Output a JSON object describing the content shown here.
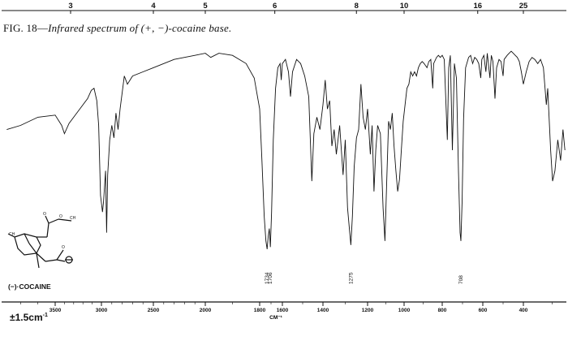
{
  "caption": {
    "prefix": "FIG. 18—",
    "title": "Infrared spectrum of (+, −)-cocaine base."
  },
  "compound_label": "(−)·COCAINE",
  "scale_label": "±1.5cm",
  "scale_label_sup": "-1",
  "colors": {
    "ink": "#111111",
    "background": "#ffffff"
  },
  "chart_data": {
    "type": "line",
    "xlabel": "CM⁻¹",
    "bottom_axis": {
      "unit": "wavenumber (cm⁻¹)",
      "range": [
        3800,
        250
      ],
      "ticks": [
        3500,
        3000,
        2500,
        2000,
        1800,
        1600,
        1400,
        1200,
        1000,
        800,
        600,
        400
      ],
      "tick_labels": [
        "3500",
        "3000",
        "2500",
        "2000",
        "1800",
        "1600",
        "1400",
        "1200",
        "1000",
        "800",
        "600",
        "400"
      ]
    },
    "top_axis": {
      "unit": "wavelength (µm)",
      "ticks": [
        3,
        4,
        5,
        6,
        8,
        10,
        16,
        25
      ],
      "tick_labels": [
        "3",
        "4",
        "5",
        "6",
        "8",
        "10",
        "16",
        "25"
      ]
    },
    "y_axis": {
      "quantity": "transmittance",
      "range": [
        0,
        100
      ],
      "ticks_shown": false
    },
    "peak_labels": [
      {
        "x": 1734,
        "text": "1734"
      },
      {
        "x": 1706,
        "text": "1706"
      },
      {
        "x": 1275,
        "text": "1275"
      },
      {
        "x": 708,
        "text": "708"
      }
    ],
    "series": [
      {
        "points": [
          [
            3780,
            60
          ],
          [
            3700,
            62
          ],
          [
            3600,
            66
          ],
          [
            3500,
            67
          ],
          [
            3430,
            62
          ],
          [
            3400,
            58
          ],
          [
            3350,
            63
          ],
          [
            3300,
            66
          ],
          [
            3200,
            72
          ],
          [
            3150,
            75
          ],
          [
            3110,
            79
          ],
          [
            3080,
            80
          ],
          [
            3050,
            74
          ],
          [
            3030,
            62
          ],
          [
            3010,
            28
          ],
          [
            2990,
            20
          ],
          [
            2980,
            25
          ],
          [
            2960,
            40
          ],
          [
            2950,
            10
          ],
          [
            2940,
            38
          ],
          [
            2920,
            55
          ],
          [
            2900,
            62
          ],
          [
            2880,
            56
          ],
          [
            2860,
            68
          ],
          [
            2840,
            60
          ],
          [
            2820,
            70
          ],
          [
            2800,
            78
          ],
          [
            2780,
            86
          ],
          [
            2750,
            82
          ],
          [
            2700,
            86
          ],
          [
            2600,
            88
          ],
          [
            2500,
            90
          ],
          [
            2400,
            92
          ],
          [
            2300,
            94
          ],
          [
            2200,
            95
          ],
          [
            2100,
            96
          ],
          [
            2000,
            97
          ],
          [
            1980,
            95
          ],
          [
            1950,
            97
          ],
          [
            1900,
            96
          ],
          [
            1850,
            92
          ],
          [
            1820,
            85
          ],
          [
            1800,
            70
          ],
          [
            1780,
            45
          ],
          [
            1760,
            18
          ],
          [
            1745,
            6
          ],
          [
            1734,
            2
          ],
          [
            1725,
            8
          ],
          [
            1715,
            12
          ],
          [
            1706,
            3
          ],
          [
            1695,
            20
          ],
          [
            1680,
            55
          ],
          [
            1660,
            80
          ],
          [
            1640,
            90
          ],
          [
            1620,
            92
          ],
          [
            1610,
            84
          ],
          [
            1600,
            92
          ],
          [
            1585,
            94
          ],
          [
            1570,
            88
          ],
          [
            1560,
            76
          ],
          [
            1550,
            88
          ],
          [
            1530,
            94
          ],
          [
            1510,
            92
          ],
          [
            1490,
            86
          ],
          [
            1470,
            76
          ],
          [
            1455,
            35
          ],
          [
            1445,
            58
          ],
          [
            1430,
            66
          ],
          [
            1415,
            60
          ],
          [
            1400,
            72
          ],
          [
            1390,
            84
          ],
          [
            1380,
            70
          ],
          [
            1370,
            74
          ],
          [
            1360,
            52
          ],
          [
            1350,
            60
          ],
          [
            1340,
            48
          ],
          [
            1325,
            62
          ],
          [
            1310,
            38
          ],
          [
            1300,
            55
          ],
          [
            1290,
            22
          ],
          [
            1280,
            10
          ],
          [
            1275,
            4
          ],
          [
            1268,
            18
          ],
          [
            1260,
            42
          ],
          [
            1250,
            56
          ],
          [
            1240,
            60
          ],
          [
            1230,
            82
          ],
          [
            1220,
            66
          ],
          [
            1210,
            60
          ],
          [
            1200,
            70
          ],
          [
            1185,
            48
          ],
          [
            1175,
            62
          ],
          [
            1165,
            30
          ],
          [
            1155,
            50
          ],
          [
            1145,
            62
          ],
          [
            1130,
            58
          ],
          [
            1115,
            22
          ],
          [
            1105,
            6
          ],
          [
            1095,
            35
          ],
          [
            1085,
            64
          ],
          [
            1075,
            60
          ],
          [
            1065,
            68
          ],
          [
            1055,
            52
          ],
          [
            1045,
            40
          ],
          [
            1035,
            30
          ],
          [
            1025,
            36
          ],
          [
            1015,
            50
          ],
          [
            1005,
            64
          ],
          [
            995,
            72
          ],
          [
            985,
            80
          ],
          [
            975,
            82
          ],
          [
            965,
            88
          ],
          [
            955,
            86
          ],
          [
            945,
            88
          ],
          [
            935,
            86
          ],
          [
            925,
            90
          ],
          [
            915,
            92
          ],
          [
            905,
            93
          ],
          [
            895,
            92
          ],
          [
            880,
            90
          ],
          [
            870,
            93
          ],
          [
            860,
            94
          ],
          [
            850,
            80
          ],
          [
            845,
            92
          ],
          [
            830,
            95
          ],
          [
            820,
            96
          ],
          [
            810,
            95
          ],
          [
            800,
            96
          ],
          [
            790,
            94
          ],
          [
            775,
            55
          ],
          [
            768,
            90
          ],
          [
            760,
            96
          ],
          [
            750,
            50
          ],
          [
            740,
            92
          ],
          [
            730,
            85
          ],
          [
            720,
            40
          ],
          [
            712,
            10
          ],
          [
            708,
            6
          ],
          [
            702,
            25
          ],
          [
            695,
            65
          ],
          [
            685,
            90
          ],
          [
            670,
            95
          ],
          [
            660,
            96
          ],
          [
            650,
            92
          ],
          [
            640,
            95
          ],
          [
            630,
            94
          ],
          [
            620,
            92
          ],
          [
            610,
            85
          ],
          [
            605,
            94
          ],
          [
            595,
            96
          ],
          [
            585,
            88
          ],
          [
            578,
            97
          ],
          [
            565,
            85
          ],
          [
            558,
            96
          ],
          [
            550,
            93
          ],
          [
            540,
            75
          ],
          [
            532,
            90
          ],
          [
            520,
            94
          ],
          [
            510,
            93
          ],
          [
            500,
            86
          ],
          [
            495,
            94
          ],
          [
            480,
            96
          ],
          [
            470,
            97
          ],
          [
            460,
            98
          ],
          [
            450,
            97
          ],
          [
            440,
            96
          ],
          [
            430,
            95
          ],
          [
            420,
            93
          ],
          [
            410,
            88
          ],
          [
            400,
            82
          ],
          [
            390,
            88
          ],
          [
            380,
            93
          ],
          [
            370,
            95
          ],
          [
            360,
            94
          ],
          [
            350,
            92
          ],
          [
            340,
            94
          ],
          [
            330,
            90
          ],
          [
            320,
            72
          ],
          [
            315,
            80
          ],
          [
            305,
            50
          ],
          [
            298,
            35
          ],
          [
            290,
            40
          ],
          [
            280,
            55
          ],
          [
            270,
            45
          ],
          [
            262,
            60
          ],
          [
            255,
            50
          ]
        ]
      }
    ]
  }
}
